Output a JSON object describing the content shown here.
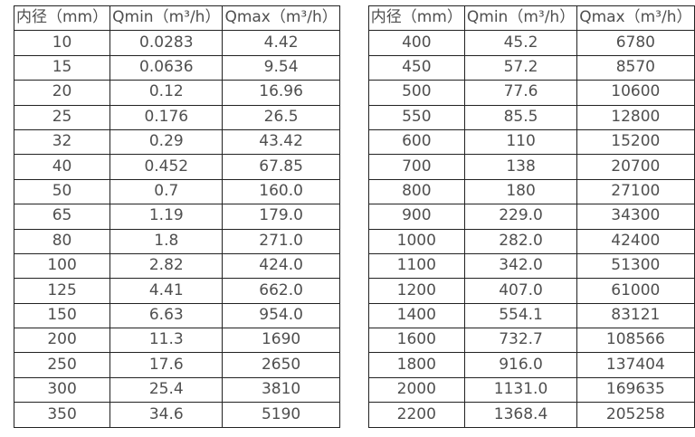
{
  "colors": {
    "background": "#ffffff",
    "table_border": "#222222",
    "cell_text": "#4f4f4f"
  },
  "tables": [
    {
      "name": "small-diameters",
      "headers": [
        "内径（mm）",
        "Qmin（m³/h）",
        "Qmax（m³/h）"
      ],
      "rows": [
        [
          "10",
          "0.0283",
          "4.42"
        ],
        [
          "15",
          "0.0636",
          "9.54"
        ],
        [
          "20",
          "0.12",
          "16.96"
        ],
        [
          "25",
          "0.176",
          "26.5"
        ],
        [
          "32",
          "0.29",
          "43.42"
        ],
        [
          "40",
          "0.452",
          "67.85"
        ],
        [
          "50",
          "0.7",
          "160.0"
        ],
        [
          "65",
          "1.19",
          "179.0"
        ],
        [
          "80",
          "1.8",
          "271.0"
        ],
        [
          "100",
          "2.82",
          "424.0"
        ],
        [
          "125",
          "4.41",
          "662.0"
        ],
        [
          "150",
          "6.63",
          "954.0"
        ],
        [
          "200",
          "11.3",
          "1690"
        ],
        [
          "250",
          "17.6",
          "2650"
        ],
        [
          "300",
          "25.4",
          "3810"
        ],
        [
          "350",
          "34.6",
          "5190"
        ]
      ]
    },
    {
      "name": "large-diameters",
      "headers": [
        "内径（mm）",
        "Qmin（m³/h）",
        "Qmax（m³/h）"
      ],
      "rows": [
        [
          "400",
          "45.2",
          "6780"
        ],
        [
          "450",
          "57.2",
          "8570"
        ],
        [
          "500",
          "77.6",
          "10600"
        ],
        [
          "550",
          "85.5",
          "12800"
        ],
        [
          "600",
          "110",
          "15200"
        ],
        [
          "700",
          "138",
          "20700"
        ],
        [
          "800",
          "180",
          "27100"
        ],
        [
          "900",
          "229.0",
          "34300"
        ],
        [
          "1000",
          "282.0",
          "42400"
        ],
        [
          "1100",
          "342.0",
          "51300"
        ],
        [
          "1200",
          "407.0",
          "61000"
        ],
        [
          "1400",
          "554.1",
          "83121"
        ],
        [
          "1600",
          "732.7",
          "108566"
        ],
        [
          "1800",
          "916.0",
          "137404"
        ],
        [
          "2000",
          "1131.0",
          "169635"
        ],
        [
          "2200",
          "1368.4",
          "205258"
        ]
      ]
    }
  ]
}
